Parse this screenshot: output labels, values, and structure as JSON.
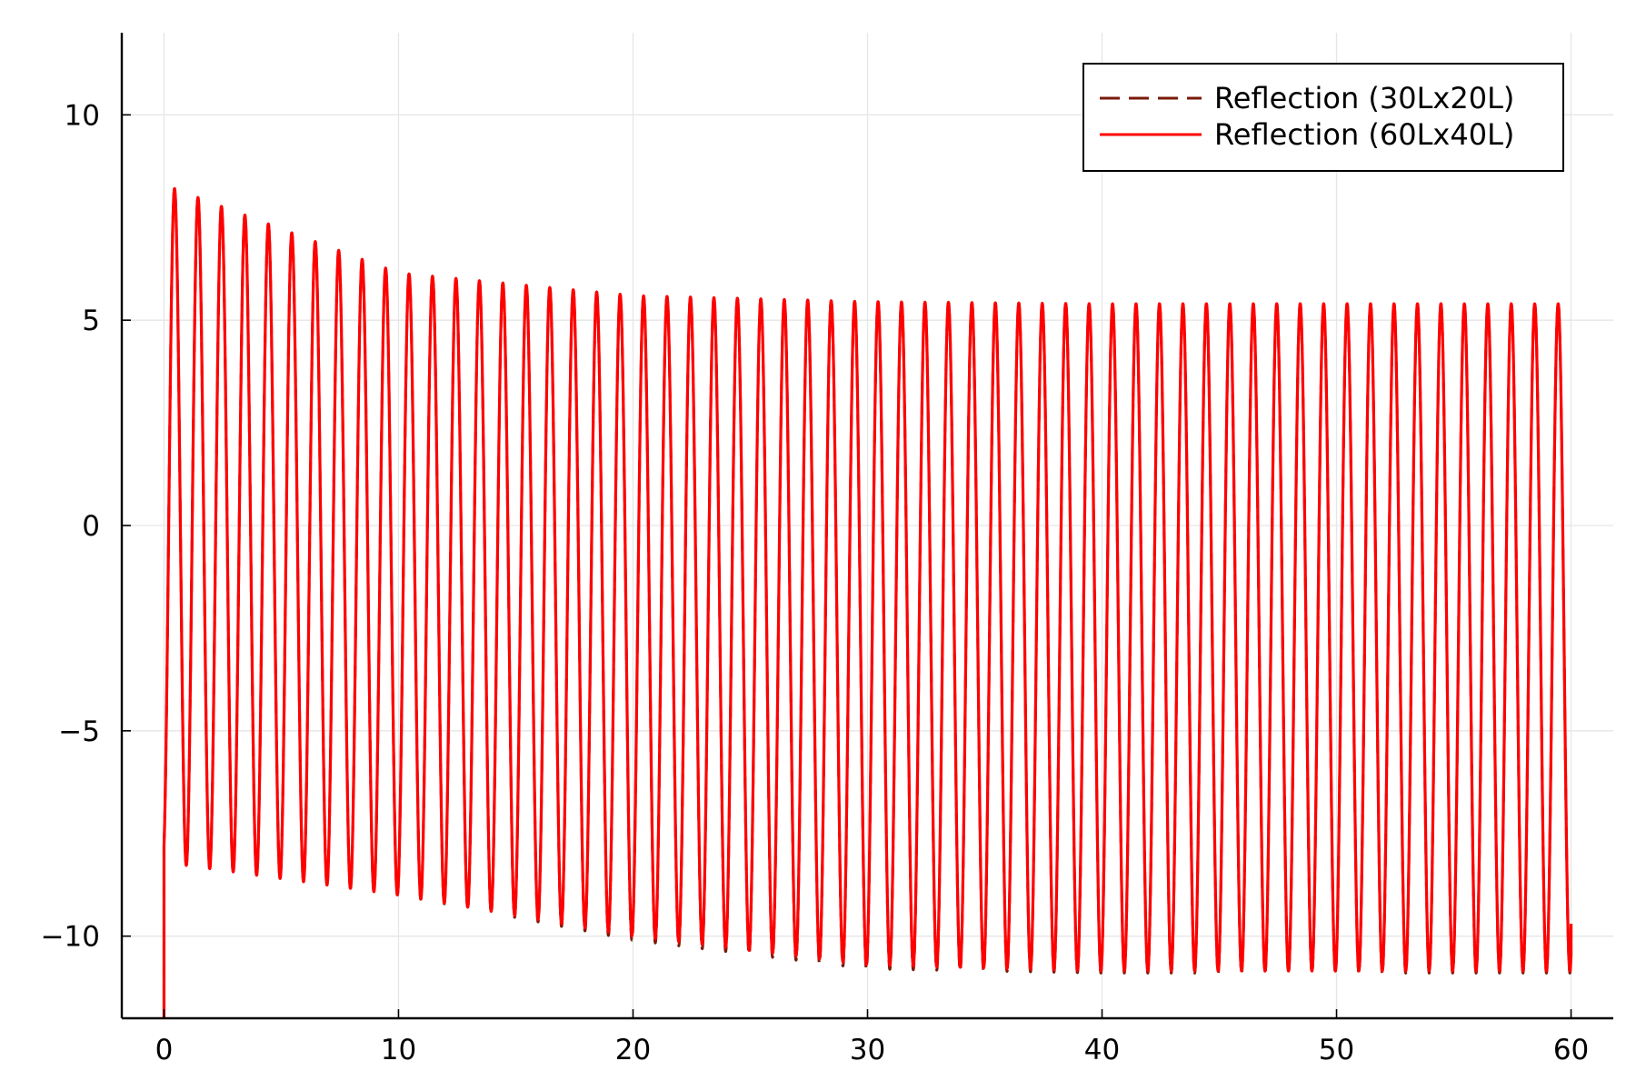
{
  "chart_data": {
    "type": "line",
    "title": "",
    "xlabel": "",
    "ylabel": "",
    "xlim": [
      -1.8,
      61.8
    ],
    "ylim": [
      -12,
      12
    ],
    "x_ticks": [
      0,
      10,
      20,
      30,
      40,
      50,
      60
    ],
    "y_ticks": [
      -10,
      -5,
      0,
      5,
      10
    ],
    "x_tick_labels": [
      "0",
      "10",
      "20",
      "30",
      "40",
      "50",
      "60"
    ],
    "y_tick_labels": [
      "−10",
      "−5",
      "0",
      "5",
      "10"
    ],
    "grid": true,
    "legend_position": "top-right",
    "series": [
      {
        "name": "Reflection (30Lx20L)",
        "color": "#7a1a0a",
        "dash": "dashed",
        "period": 1.0,
        "start_x": 0,
        "end_x": 60,
        "end_y": -9.7,
        "x": [
          0,
          10,
          20,
          30,
          40,
          50,
          60
        ],
        "max_envelope": [
          8.3,
          6.15,
          5.6,
          5.45,
          5.4,
          5.4,
          5.4
        ],
        "min_envelope": [
          -8.2,
          -9.0,
          -10.1,
          -10.8,
          -10.9,
          -10.9,
          -10.9
        ]
      },
      {
        "name": "Reflection (60Lx40L)",
        "color": "#ff0000",
        "dash": "solid",
        "period": 1.0,
        "start_x": 0,
        "end_x": 60,
        "end_y": -9.7,
        "x": [
          0,
          10,
          20,
          30,
          40,
          50,
          60
        ],
        "max_envelope": [
          8.3,
          6.15,
          5.6,
          5.45,
          5.4,
          5.4,
          5.4
        ],
        "min_envelope": [
          -8.2,
          -9.0,
          -10.0,
          -10.7,
          -10.85,
          -10.85,
          -10.85
        ]
      }
    ]
  }
}
